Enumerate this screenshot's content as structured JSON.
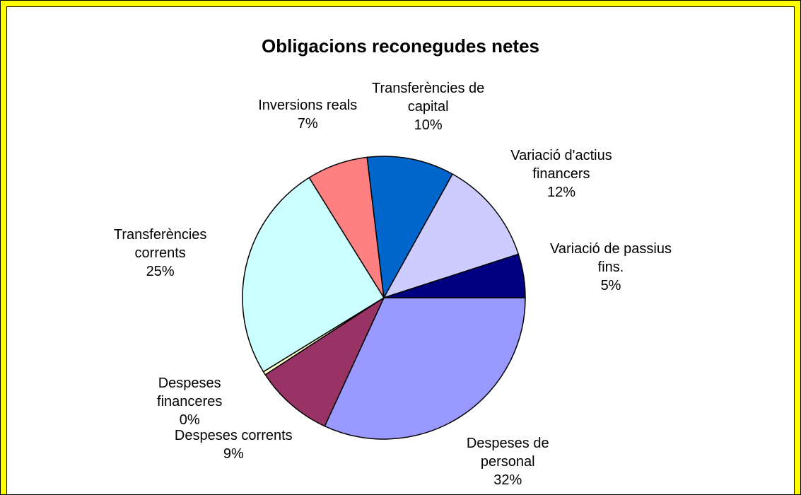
{
  "chart_data": {
    "type": "pie",
    "title": "Obligacions reconegudes netes",
    "categories": [
      "Despeses de personal",
      "Despeses corrents",
      "Despeses financeres",
      "Transferències corrents",
      "Inversions reals",
      "Transferències de capital",
      "Variació d'actius financers",
      "Variació de passius fins."
    ],
    "values": [
      32,
      9,
      0.4,
      25,
      7,
      10,
      12,
      5
    ],
    "value_labels": [
      "32%",
      "9%",
      "0%",
      "25%",
      "7%",
      "10%",
      "12%",
      "5%"
    ],
    "colors": [
      "#9999ff",
      "#993366",
      "#ffffcc",
      "#ccffff",
      "#ff8080",
      "#0066cc",
      "#ccccff",
      "#000080"
    ]
  }
}
